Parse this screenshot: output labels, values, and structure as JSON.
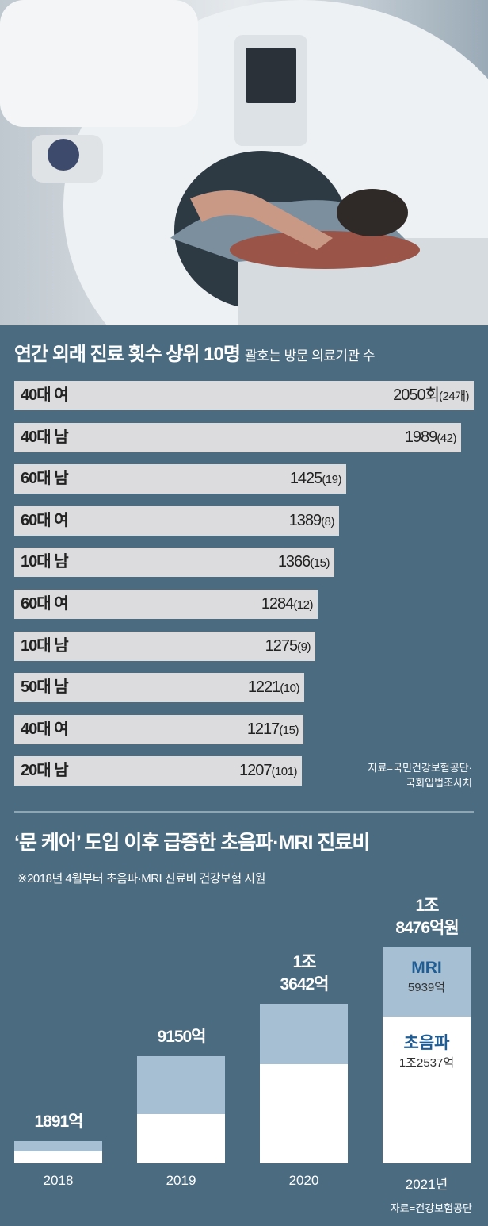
{
  "chart_data": [
    {
      "type": "bar",
      "orientation": "horizontal",
      "title": "연간 외래 진료 횟수 상위 10명",
      "subtitle": "괄호는 방문 의료기관 수",
      "categories": [
        "40대 여",
        "40대 남",
        "60대 남",
        "60대 여",
        "10대 남",
        "60대 여",
        "10대 남",
        "50대 남",
        "40대 여",
        "20대 남"
      ],
      "values": [
        2050,
        1989,
        1425,
        1389,
        1366,
        1284,
        1275,
        1221,
        1217,
        1207
      ],
      "value_labels": [
        "2050회",
        "1989",
        "1425",
        "1389",
        "1366",
        "1284",
        "1275",
        "1221",
        "1217",
        "1207"
      ],
      "institution_counts": [
        "(24개)",
        "(42)",
        "(19)",
        "(8)",
        "(15)",
        "(12)",
        "(9)",
        "(10)",
        "(15)",
        "(101)"
      ],
      "source": [
        "자료=국민건강보험공단·",
        "국회입법조사처"
      ]
    },
    {
      "type": "bar",
      "orientation": "vertical-stacked",
      "title": "‘문 케어’ 도입 이후 급증한 초음파·MRI 진료비",
      "note": "※2018년 4월부터 초음파·MRI 진료비 건강보험 지원",
      "categories": [
        "2018",
        "2019",
        "2020",
        "2021년"
      ],
      "totals": [
        1891,
        9150,
        13642,
        18476
      ],
      "total_labels": [
        [
          "1891억"
        ],
        [
          "9150억"
        ],
        [
          "1조",
          "3642억"
        ],
        [
          "1조",
          "8476억원"
        ]
      ],
      "series": [
        {
          "name": "초음파",
          "values": [
            1000,
            4200,
            8500,
            12537
          ],
          "label": "1조2537억"
        },
        {
          "name": "MRI",
          "values": [
            891,
            4950,
            5142,
            5939
          ],
          "label": "5939억"
        }
      ],
      "unit": "억원",
      "source": "자료=건강보험공단"
    }
  ]
}
